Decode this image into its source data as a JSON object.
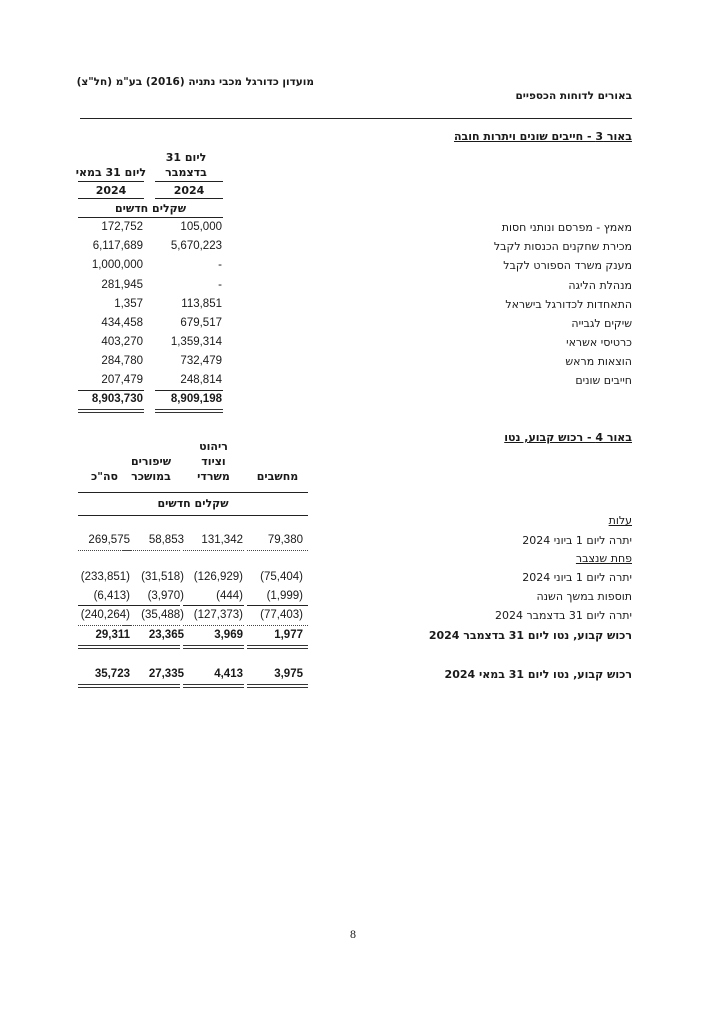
{
  "header": {
    "company": "מועדון כדורגל מכבי נתניה (2016) בע\"מ (חל\"צ)",
    "section": "באורים לדוחות הכספיים"
  },
  "note3": {
    "title": "באור 3 - חייבים שונים ויתרות חובה",
    "col_dec_line1": "ליום 31",
    "col_dec_line2": "בדצמבר",
    "col_may": "ליום 31 במאי",
    "year_dec": "2024",
    "year_may": "2024",
    "currency": "שקלים חדשים",
    "rows": [
      {
        "label": "מאמץ - מפרסם ונותני חסות",
        "dec": "105,000",
        "may": "172,752"
      },
      {
        "label": "מכירת שחקנים הכנסות לקבל",
        "dec": "5,670,223",
        "may": "6,117,689"
      },
      {
        "label": "מענק משרד הספורט לקבל",
        "dec": "-",
        "may": "1,000,000"
      },
      {
        "label": "מנהלת הליגה",
        "dec": "-",
        "may": "281,945"
      },
      {
        "label": "התאחדות לכדורגל בישראל",
        "dec": "113,851",
        "may": "1,357"
      },
      {
        "label": "שיקים לגבייה",
        "dec": "679,517",
        "may": "434,458"
      },
      {
        "label": "כרטיסי אשראי",
        "dec": "1,359,314",
        "may": "403,270"
      },
      {
        "label": "הוצאות מראש",
        "dec": "732,479",
        "may": "284,780"
      },
      {
        "label": "חייבים שונים",
        "dec": "248,814",
        "may": "207,479"
      }
    ],
    "total_dec": "8,909,198",
    "total_may": "8,903,730"
  },
  "note4": {
    "title": "באור 4 - רכוש קבוע, נטו",
    "columns": [
      [
        "מחשבים"
      ],
      [
        "ריהוט",
        "וציוד",
        "משרדי"
      ],
      [
        "שיפורים",
        "במושכר"
      ],
      [
        "סה\"כ"
      ]
    ],
    "currency": "שקלים חדשים",
    "cost_heading": "עלות",
    "depr_heading": "פחת שנצבר",
    "rows": [
      {
        "label": "יתרה ליום 1 ביוני 2024",
        "values": [
          "79,380",
          "131,342",
          "58,853",
          "269,575"
        ]
      },
      {
        "label": "יתרה ליום 1 ביוני 2024",
        "values": [
          "(75,404)",
          "(126,929)",
          "(31,518)",
          "(233,851)"
        ]
      },
      {
        "label": "תוספות במשך השנה",
        "values": [
          "(1,999)",
          "(444)",
          "(3,970)",
          "(6,413)"
        ]
      },
      {
        "label": "יתרה ליום 31 בדצמבר 2024",
        "values": [
          "(77,403)",
          "(127,373)",
          "(35,488)",
          "(240,264)"
        ]
      },
      {
        "label": "רכוש קבוע, נטו ליום 31 בדצמבר 2024",
        "values": [
          "1,977",
          "3,969",
          "23,365",
          "29,311"
        ]
      },
      {
        "label": "רכוש קבוע, נטו ליום 31 במאי 2024",
        "values": [
          "3,975",
          "4,413",
          "27,335",
          "35,723"
        ]
      }
    ]
  },
  "page_number": "8"
}
